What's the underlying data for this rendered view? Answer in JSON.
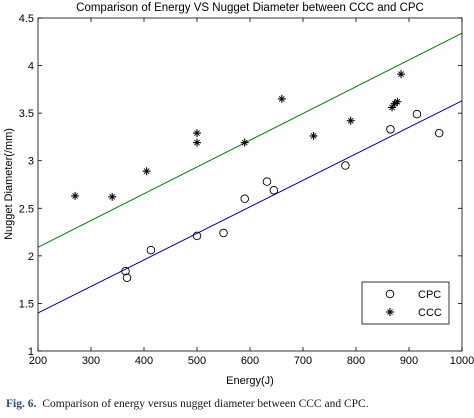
{
  "chart_data": {
    "type": "scatter",
    "title": "Comparison of Energy VS Nugget Diameter between CCC and CPC",
    "xlabel": "Energy(J)",
    "ylabel": "Nugget Diameter(/mm)",
    "xlim": [
      200,
      1000
    ],
    "ylim": [
      1,
      4.5
    ],
    "xticks": [
      200,
      300,
      400,
      500,
      600,
      700,
      800,
      900,
      1000
    ],
    "yticks": [
      1,
      1.5,
      2,
      2.5,
      3,
      3.5,
      4,
      4.5
    ],
    "xtick_labels": [
      "200",
      "300",
      "400",
      "500",
      "600",
      "700",
      "800",
      "900",
      "1000"
    ],
    "ytick_labels": [
      "1",
      "1.5",
      "2",
      "2.5",
      "3",
      "3.5",
      "4",
      "4.5"
    ],
    "grid": false,
    "legend_position": "bottom-right",
    "series": [
      {
        "name": "CPC",
        "marker": "circle",
        "color": "#000000",
        "x": [
          365,
          368,
          413,
          500,
          550,
          590,
          632,
          645,
          780,
          865,
          915,
          957
        ],
        "y": [
          1.84,
          1.77,
          2.06,
          2.21,
          2.24,
          2.6,
          2.78,
          2.69,
          2.95,
          3.33,
          3.49,
          3.29
        ],
        "fit_line": {
          "x": [
            200,
            1000
          ],
          "y": [
            1.4,
            3.63
          ],
          "color": "#00009e"
        }
      },
      {
        "name": "CCC",
        "marker": "star",
        "color": "#000000",
        "x": [
          270,
          340,
          405,
          500,
          500,
          590,
          660,
          720,
          790,
          868,
          873,
          878,
          885
        ],
        "y": [
          2.63,
          2.62,
          2.89,
          3.19,
          3.29,
          3.19,
          3.65,
          3.26,
          3.42,
          3.56,
          3.6,
          3.62,
          3.91
        ],
        "fit_line": {
          "x": [
            200,
            1000
          ],
          "y": [
            2.09,
            4.34
          ],
          "color": "#007f00"
        }
      }
    ]
  },
  "caption": {
    "label": "Fig. 6.",
    "text": "Comparison of energy versus nugget diameter between CCC and CPC."
  }
}
